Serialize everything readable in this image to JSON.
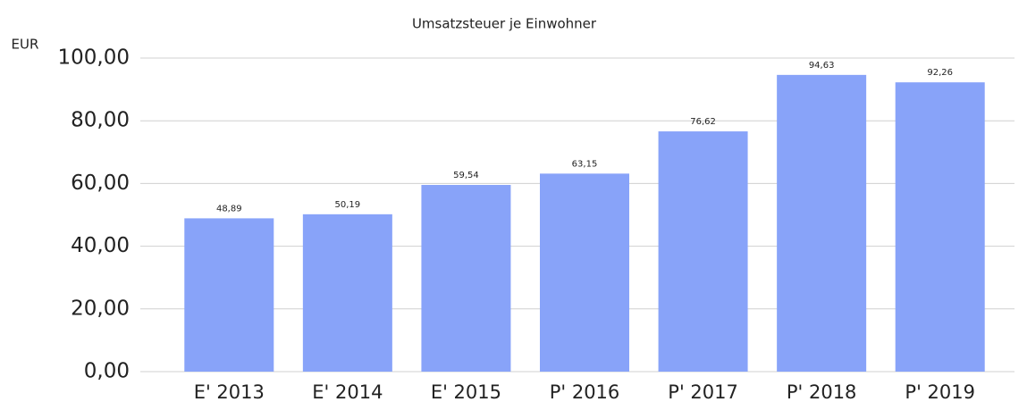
{
  "chart_data": {
    "type": "bar",
    "title": "Umsatzsteuer je Einwohner",
    "y_label": "EUR",
    "categories": [
      "E' 2013",
      "E' 2014",
      "E' 2015",
      "P' 2016",
      "P' 2017",
      "P' 2018",
      "P' 2019"
    ],
    "values": [
      48.89,
      50.19,
      59.54,
      63.15,
      76.62,
      94.63,
      92.26
    ],
    "value_labels": [
      "48,89",
      "50,19",
      "59,54",
      "63,15",
      "76,62",
      "94,63",
      "92,26"
    ],
    "color": "#88a3f9",
    "ylim": [
      0,
      100
    ],
    "yticks": [
      {
        "value": 0,
        "label": "0,00"
      },
      {
        "value": 20,
        "label": "20,00"
      },
      {
        "value": 40,
        "label": "40,00"
      },
      {
        "value": 60,
        "label": "60,00"
      },
      {
        "value": 80,
        "label": "80,00"
      },
      {
        "value": 100,
        "label": "100,00"
      }
    ],
    "grid": true
  }
}
